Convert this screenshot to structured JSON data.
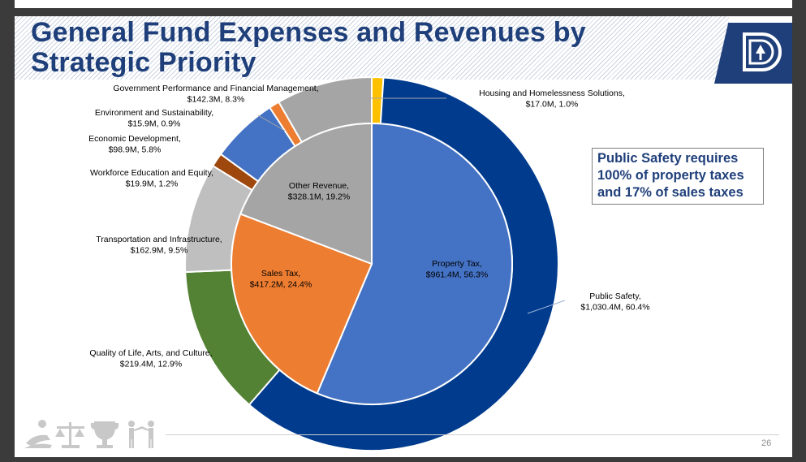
{
  "title_line1": "General Fund Expenses and Revenues by",
  "title_line2": "Strategic Priority",
  "callout": {
    "line1": "Public Safety requires",
    "line2": "100% of property taxes",
    "line3": "and 17% of sales taxes"
  },
  "page_number": "26",
  "icons": [
    "people-icon",
    "scales-icon",
    "trophy-icon",
    "figures-icon"
  ],
  "chart_data": [
    {
      "type": "pie",
      "name": "Expenses by Strategic Priority",
      "ring": "outer",
      "slices": [
        {
          "label": "Housing and Homelessness Solutions,",
          "value_text": "$17.0M, 1.0%",
          "value": 17.0,
          "percent": 1.0,
          "color": "#ffc000"
        },
        {
          "label": "Public Safety,",
          "value_text": "$1,030.4M, 60.4%",
          "value": 1030.4,
          "percent": 60.4,
          "color": "#003b8e"
        },
        {
          "label": "Quality of Life, Arts, and Culture,",
          "value_text": "$219.4M, 12.9%",
          "value": 219.4,
          "percent": 12.9,
          "color": "#548235"
        },
        {
          "label": "Transportation and Infrastructure,",
          "value_text": "$162.9M, 9.5%",
          "value": 162.9,
          "percent": 9.5,
          "color": "#bfbfbf"
        },
        {
          "label": "Workforce Education and Equity,",
          "value_text": "$19.9M, 1.2%",
          "value": 19.9,
          "percent": 1.2,
          "color": "#9e480e"
        },
        {
          "label": "Economic Development,",
          "value_text": "$98.9M, 5.8%",
          "value": 98.9,
          "percent": 5.8,
          "color": "#4472c4"
        },
        {
          "label": "Environment and Sustainability,",
          "value_text": "$15.9M, 0.9%",
          "value": 15.9,
          "percent": 0.9,
          "color": "#ed7d31"
        },
        {
          "label": "Government Performance and Financial Management,",
          "value_text": "$142.3M, 8.3%",
          "value": 142.3,
          "percent": 8.3,
          "color": "#a5a5a5"
        }
      ]
    },
    {
      "type": "pie",
      "name": "Revenues",
      "ring": "inner",
      "slices": [
        {
          "label": "Property Tax,",
          "value_text": "$961.4M, 56.3%",
          "value": 961.4,
          "percent": 56.3,
          "color": "#4472c4"
        },
        {
          "label": "Sales Tax,",
          "value_text": "$417.2M, 24.4%",
          "value": 417.2,
          "percent": 24.4,
          "color": "#ed7d31"
        },
        {
          "label": "Other Revenue,",
          "value_text": "$328.1M, 19.2%",
          "value": 328.1,
          "percent": 19.2,
          "color": "#a5a5a5"
        }
      ]
    }
  ]
}
